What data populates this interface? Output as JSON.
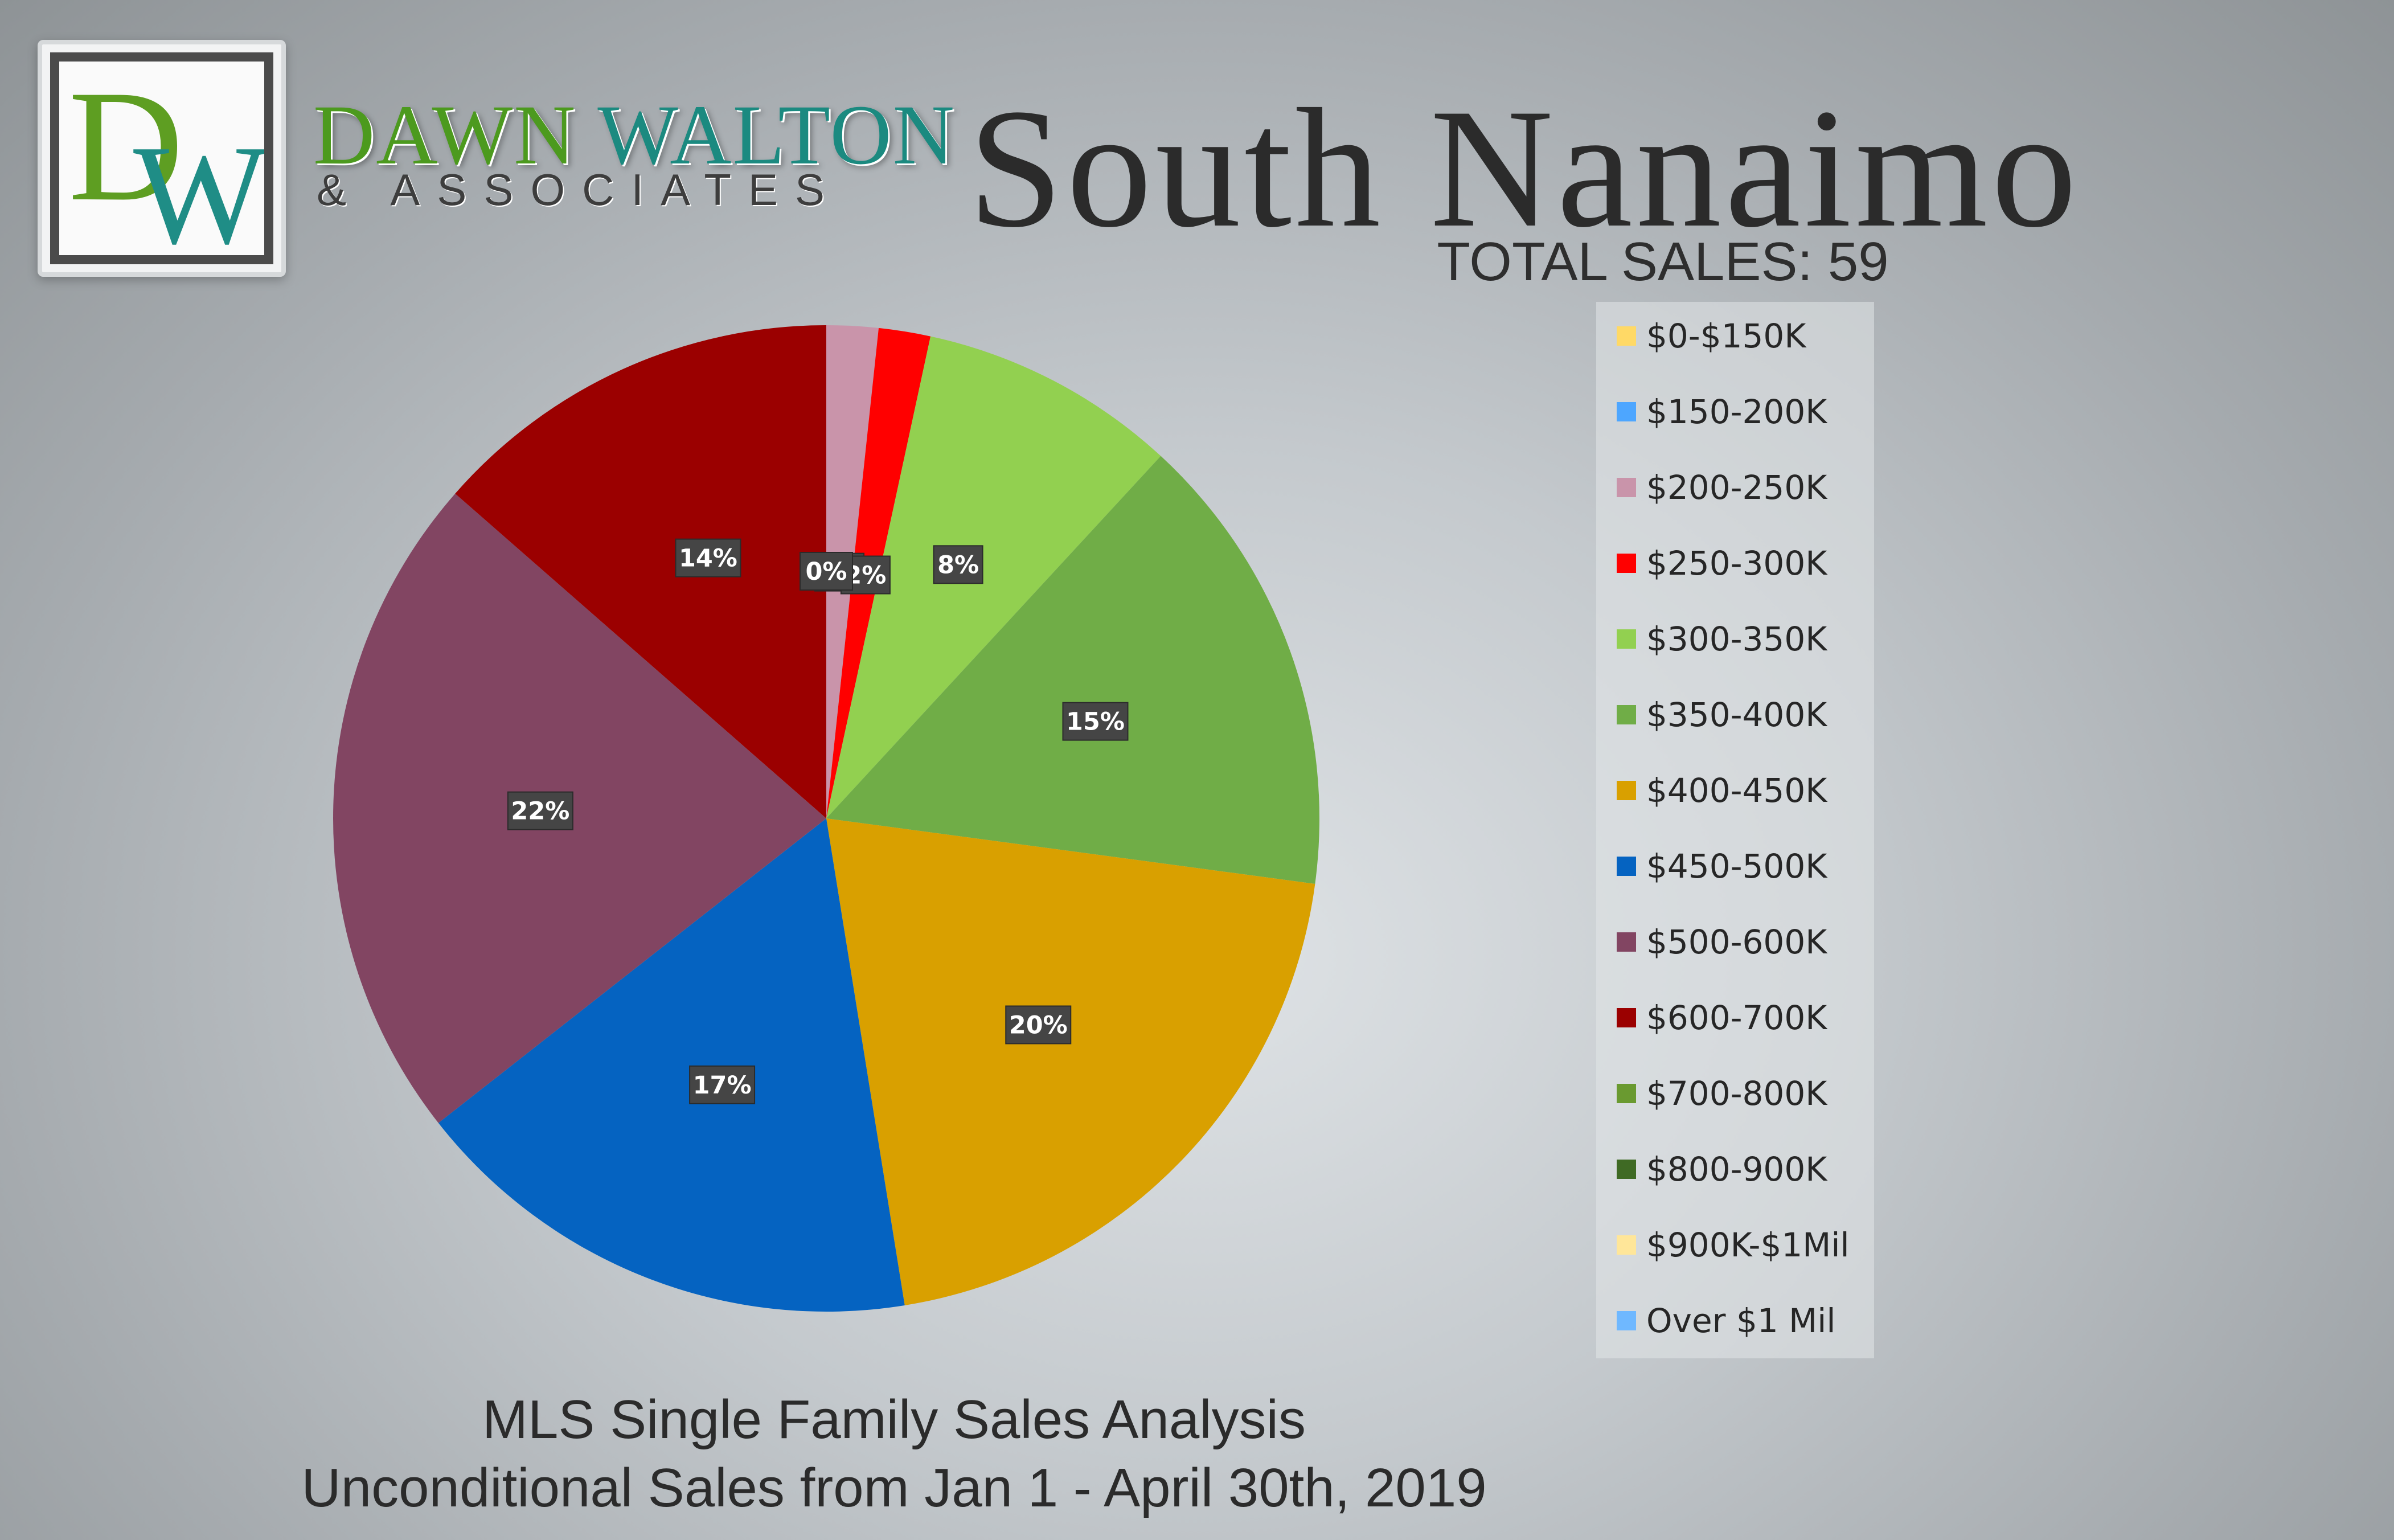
{
  "brand": {
    "logo_d": "D",
    "logo_w": "W",
    "name_part1": "DAWN ",
    "name_part2": "WALTON",
    "subtitle": "& ASSOCIATES"
  },
  "header": {
    "title": "South Nanaimo",
    "total_sales": "TOTAL SALES: 59"
  },
  "footer": {
    "line1": "MLS Single Family Sales Analysis",
    "line2": "Unconditional Sales from Jan 1 - April 30th, 2019"
  },
  "chart_data": {
    "type": "pie",
    "title": "South Nanaimo",
    "legend_position": "right",
    "categories": [
      "$0-$150K",
      "$150-200K",
      "$200-250K",
      "$250-300K",
      "$300-350K",
      "$350-400K",
      "$400-450K",
      "$450-500K",
      "$500-600K",
      "$600-700K",
      "$700-800K",
      "$800-900K",
      "$900K-$1Mil",
      "Over $1 Mil"
    ],
    "values": [
      0,
      0,
      1,
      1,
      5,
      9,
      12,
      10,
      13,
      8,
      0,
      0,
      0,
      0
    ],
    "data_labels": [
      "0%",
      "0%",
      "2%",
      "2%",
      "8%",
      "15%",
      "20%",
      "17%",
      "22%",
      "14%",
      "0%",
      "0%",
      "0%",
      "0%"
    ],
    "colors": [
      "#ffd966",
      "#4da6ff",
      "#c994aa",
      "#ff0000",
      "#92d050",
      "#70ad47",
      "#d9a000",
      "#0563c1",
      "#824562",
      "#9b0000",
      "#6a9a30",
      "#3f6a24",
      "#ffe699",
      "#6fb8ff"
    ]
  }
}
